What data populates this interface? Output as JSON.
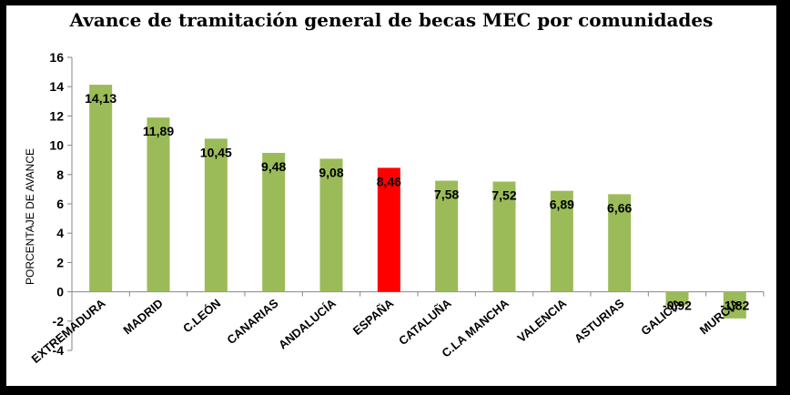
{
  "chart_data": {
    "type": "bar",
    "title": "Avance de tramitación  general de becas MEC por comunidades",
    "xlabel": "",
    "ylabel": "PORCENTAJE DE AVANCE",
    "ylim": [
      -4,
      16
    ],
    "yticks": [
      -4,
      -2,
      0,
      2,
      4,
      6,
      8,
      10,
      12,
      14,
      16
    ],
    "grid": false,
    "legend": "none",
    "categories": [
      "EXTREMADURA",
      "MADRID",
      "C.LEÓN",
      "CANARIAS",
      "ANDALUCÍA",
      "ESPAÑA",
      "CATALUÑA",
      "C.LA MANCHA",
      "VALENCIA",
      "ASTURIAS",
      "GALICIA",
      "MURCIA"
    ],
    "values": [
      14.13,
      11.89,
      10.45,
      9.48,
      9.08,
      8.46,
      7.58,
      7.52,
      6.89,
      6.66,
      -0.92,
      -1.82
    ],
    "data_labels": [
      "14,13",
      "11,89",
      "10,45",
      "9,48",
      "9,08",
      "8,46",
      "7,58",
      "7,52",
      "6,89",
      "6,66",
      "-0,92",
      "-1,82"
    ],
    "colors": {
      "bar": "#9bbb59",
      "highlight": "#ff0000",
      "highlight_category": "ESPAÑA"
    }
  }
}
